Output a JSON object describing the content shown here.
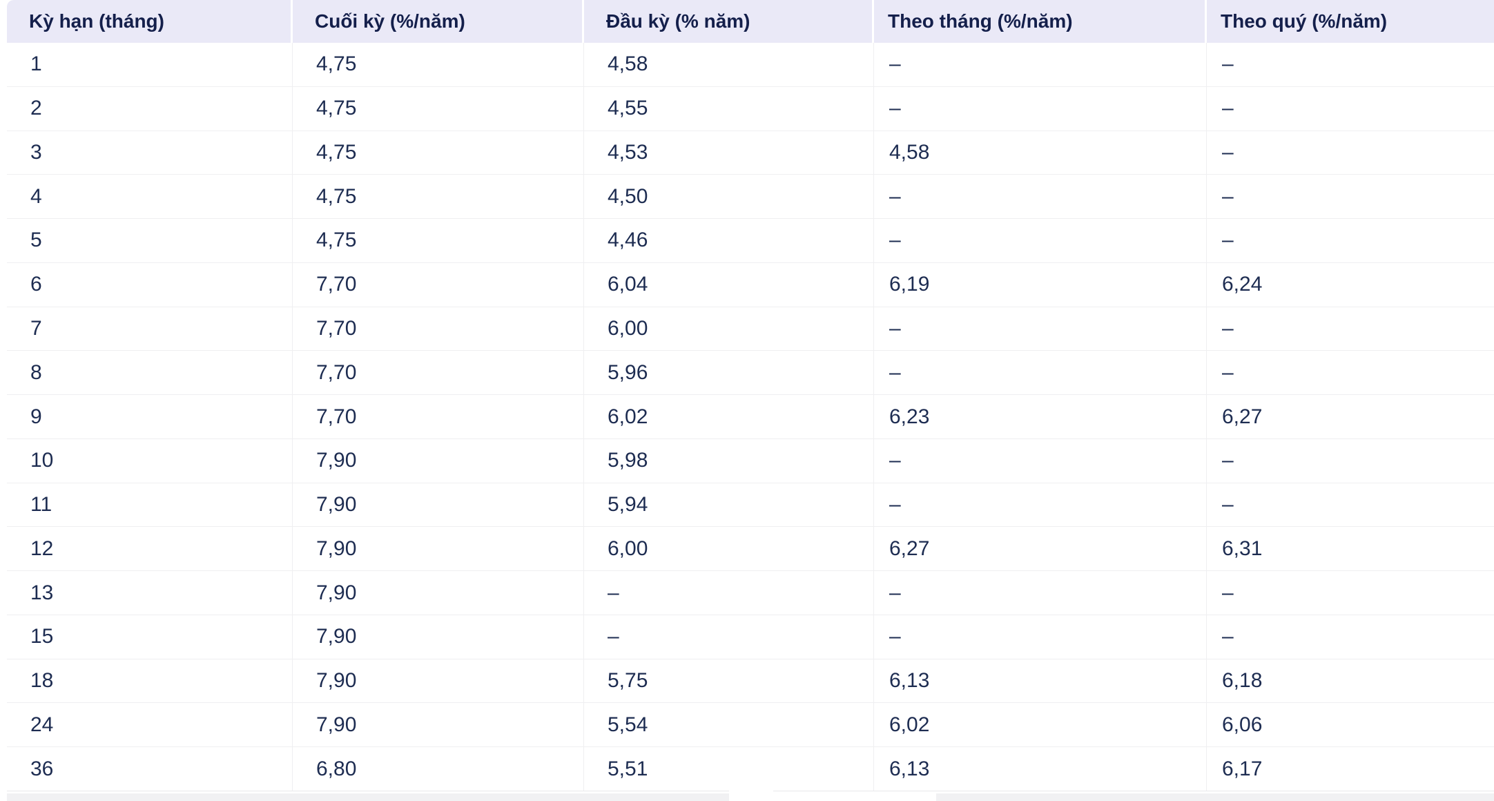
{
  "table": {
    "columns": [
      {
        "label": "Kỳ hạn (tháng)"
      },
      {
        "label": "Cuối kỳ (%/năm)"
      },
      {
        "label": "Đầu kỳ (% năm)"
      },
      {
        "label": "Theo tháng (%/năm)"
      },
      {
        "label": "Theo quý (%/năm)"
      }
    ],
    "empty_marker": "–",
    "rows": [
      [
        "1",
        "4,75",
        "4,58",
        "–",
        "–"
      ],
      [
        "2",
        "4,75",
        "4,55",
        "–",
        "–"
      ],
      [
        "3",
        "4,75",
        "4,53",
        "4,58",
        "–"
      ],
      [
        "4",
        "4,75",
        "4,50",
        "–",
        "–"
      ],
      [
        "5",
        "4,75",
        "4,46",
        "–",
        "–"
      ],
      [
        "6",
        "7,70",
        "6,04",
        "6,19",
        "6,24"
      ],
      [
        "7",
        "7,70",
        "6,00",
        "–",
        "–"
      ],
      [
        "8",
        "7,70",
        "5,96",
        "–",
        "–"
      ],
      [
        "9",
        "7,70",
        "6,02",
        "6,23",
        "6,27"
      ],
      [
        "10",
        "7,90",
        "5,98",
        "–",
        "–"
      ],
      [
        "11",
        "7,90",
        "5,94",
        "–",
        "–"
      ],
      [
        "12",
        "7,90",
        "6,00",
        "6,27",
        "6,31"
      ],
      [
        "13",
        "7,90",
        "–",
        "–",
        "–"
      ],
      [
        "15",
        "7,90",
        "–",
        "–",
        "–"
      ],
      [
        "18",
        "7,90",
        "5,75",
        "6,13",
        "6,18"
      ],
      [
        "24",
        "7,90",
        "5,54",
        "6,02",
        "6,06"
      ],
      [
        "36",
        "6,80",
        "5,51",
        "6,13",
        "6,17"
      ]
    ]
  },
  "colors": {
    "page_bg": "#ffffff",
    "header_bg": "#eae9f7",
    "header_text": "#141f4b",
    "body_text": "#1d2c51",
    "grid_line": "#efeff1",
    "strip_bg": "#f1f1f3",
    "strip_line": "#e8e8ea"
  }
}
